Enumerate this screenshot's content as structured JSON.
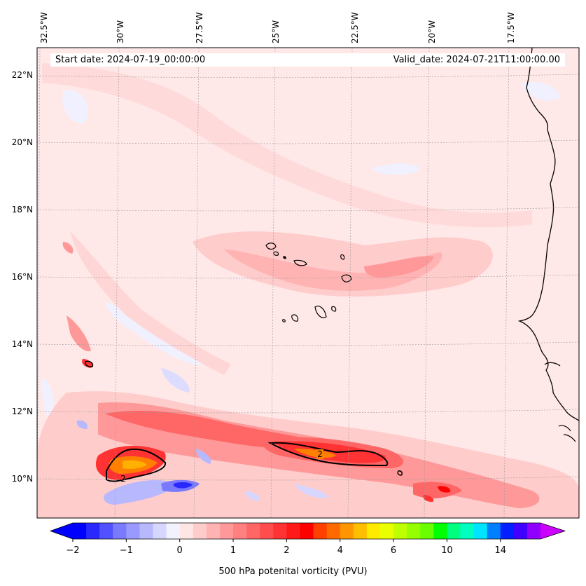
{
  "header": {
    "start_date": "Start date: 2024-07-19_00:00:00",
    "valid_date": "Valid_date: 2024-07-21T11:00:00.00"
  },
  "longitude_labels": [
    "32.5°W",
    "30°W",
    "27.5°W",
    "25°W",
    "22.5°W",
    "20°W",
    "17.5°W"
  ],
  "latitude_labels": [
    "22°N",
    "20°N",
    "18°N",
    "16°N",
    "14°N",
    "12°N",
    "10°N"
  ],
  "contour_labels": [
    "2",
    "2"
  ],
  "colorbar": {
    "label": "500 hPa potenital vorticity (PVU)",
    "tick_labels": [
      "−2",
      "−1",
      "0",
      "1",
      "2",
      "4",
      "6",
      "10",
      "14"
    ],
    "colors": [
      "#0000ff",
      "#2929ff",
      "#5151ff",
      "#7a7aff",
      "#9999ff",
      "#b8b8ff",
      "#d6d6ff",
      "#f2f2ff",
      "#ffe6e6",
      "#ffcccc",
      "#ffb3b3",
      "#ff9999",
      "#ff8080",
      "#ff6666",
      "#ff4d4d",
      "#ff3333",
      "#ff1a1a",
      "#ff0000",
      "#ff4000",
      "#ff6a00",
      "#ff9500",
      "#ffbf00",
      "#ffea00",
      "#eaff00",
      "#bfff00",
      "#95ff00",
      "#6aff00",
      "#00ff00",
      "#00ff80",
      "#00ffc0",
      "#00e5ff",
      "#0080ff",
      "#0020ff",
      "#4000ff",
      "#9000ff"
    ],
    "under_color": "#0000ff",
    "over_color": "#cc00ff"
  },
  "colors": {
    "background_field": "#ffe8e8",
    "land_outline": "#000000",
    "pv_contour": "#000000"
  }
}
